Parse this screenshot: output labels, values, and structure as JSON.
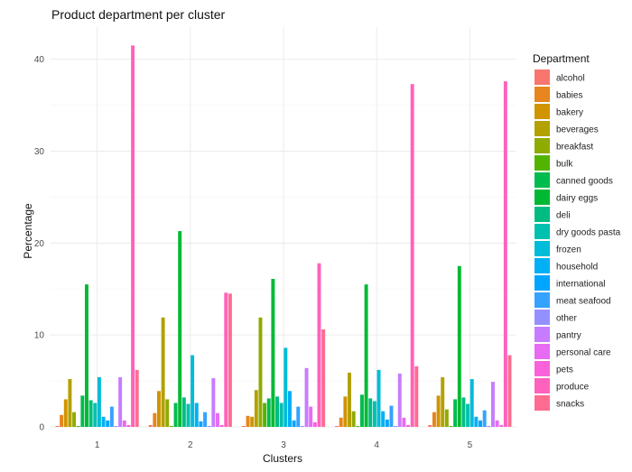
{
  "chart_data": {
    "type": "bar",
    "title": "Product department per cluster",
    "xlabel": "Clusters",
    "ylabel": "Percentage",
    "ylim": [
      0,
      43.5
    ],
    "y_ticks": [
      0,
      10,
      20,
      30,
      40
    ],
    "categories": [
      "1",
      "2",
      "3",
      "4",
      "5"
    ],
    "legend_title": "Department",
    "legend_position": "right",
    "series": [
      {
        "name": "alcohol",
        "color": "#F8766D",
        "values": [
          0.1,
          0.2,
          0.1,
          0.1,
          0.2
        ]
      },
      {
        "name": "babies",
        "color": "#E7851E",
        "values": [
          1.3,
          1.5,
          1.2,
          1.0,
          1.6
        ]
      },
      {
        "name": "bakery",
        "color": "#D09400",
        "values": [
          3.0,
          3.9,
          1.1,
          3.3,
          3.4
        ]
      },
      {
        "name": "beverages",
        "color": "#B2A100",
        "values": [
          5.2,
          11.9,
          4.0,
          5.9,
          5.4
        ]
      },
      {
        "name": "breakfast",
        "color": "#8EAB00",
        "values": [
          1.6,
          3.0,
          11.9,
          1.7,
          1.9
        ]
      },
      {
        "name": "bulk",
        "color": "#53B400",
        "values": [
          0.1,
          0.1,
          2.6,
          0.1,
          0.1
        ]
      },
      {
        "name": "canned goods",
        "color": "#00BB4E",
        "values": [
          3.4,
          2.6,
          3.1,
          3.5,
          3.0
        ]
      },
      {
        "name": "dairy eggs",
        "color": "#00B933",
        "values": [
          15.5,
          21.3,
          16.1,
          15.5,
          17.5
        ]
      },
      {
        "name": "deli",
        "color": "#00BC80",
        "values": [
          2.9,
          3.2,
          3.3,
          3.1,
          3.2
        ]
      },
      {
        "name": "dry goods pasta",
        "color": "#00C0AF",
        "values": [
          2.6,
          2.5,
          2.6,
          2.8,
          2.5
        ]
      },
      {
        "name": "frozen",
        "color": "#00BCD8",
        "values": [
          5.4,
          7.8,
          8.6,
          6.2,
          5.2
        ]
      },
      {
        "name": "household",
        "color": "#00B0F6",
        "values": [
          1.1,
          2.6,
          3.9,
          1.7,
          1.1
        ]
      },
      {
        "name": "international",
        "color": "#00A5FF",
        "values": [
          0.7,
          0.6,
          0.7,
          0.8,
          0.7
        ]
      },
      {
        "name": "meat seafood",
        "color": "#35A2FF",
        "values": [
          2.2,
          1.6,
          2.2,
          2.3,
          1.8
        ]
      },
      {
        "name": "other",
        "color": "#9590FF",
        "values": [
          0.1,
          0.1,
          0.1,
          0.1,
          0.1
        ]
      },
      {
        "name": "pantry",
        "color": "#C77CFF",
        "values": [
          5.4,
          5.3,
          6.4,
          5.8,
          4.9
        ]
      },
      {
        "name": "personal care",
        "color": "#E76BF3",
        "values": [
          0.7,
          1.5,
          2.2,
          1.0,
          0.7
        ]
      },
      {
        "name": "pets",
        "color": "#FA62DB",
        "values": [
          0.2,
          0.2,
          0.5,
          0.2,
          0.2
        ]
      },
      {
        "name": "produce",
        "color": "#FF62BC",
        "values": [
          41.5,
          14.6,
          17.8,
          37.3,
          37.6
        ]
      },
      {
        "name": "snacks",
        "color": "#FF6C91",
        "values": [
          6.2,
          14.5,
          10.6,
          6.6,
          7.8
        ]
      }
    ]
  }
}
